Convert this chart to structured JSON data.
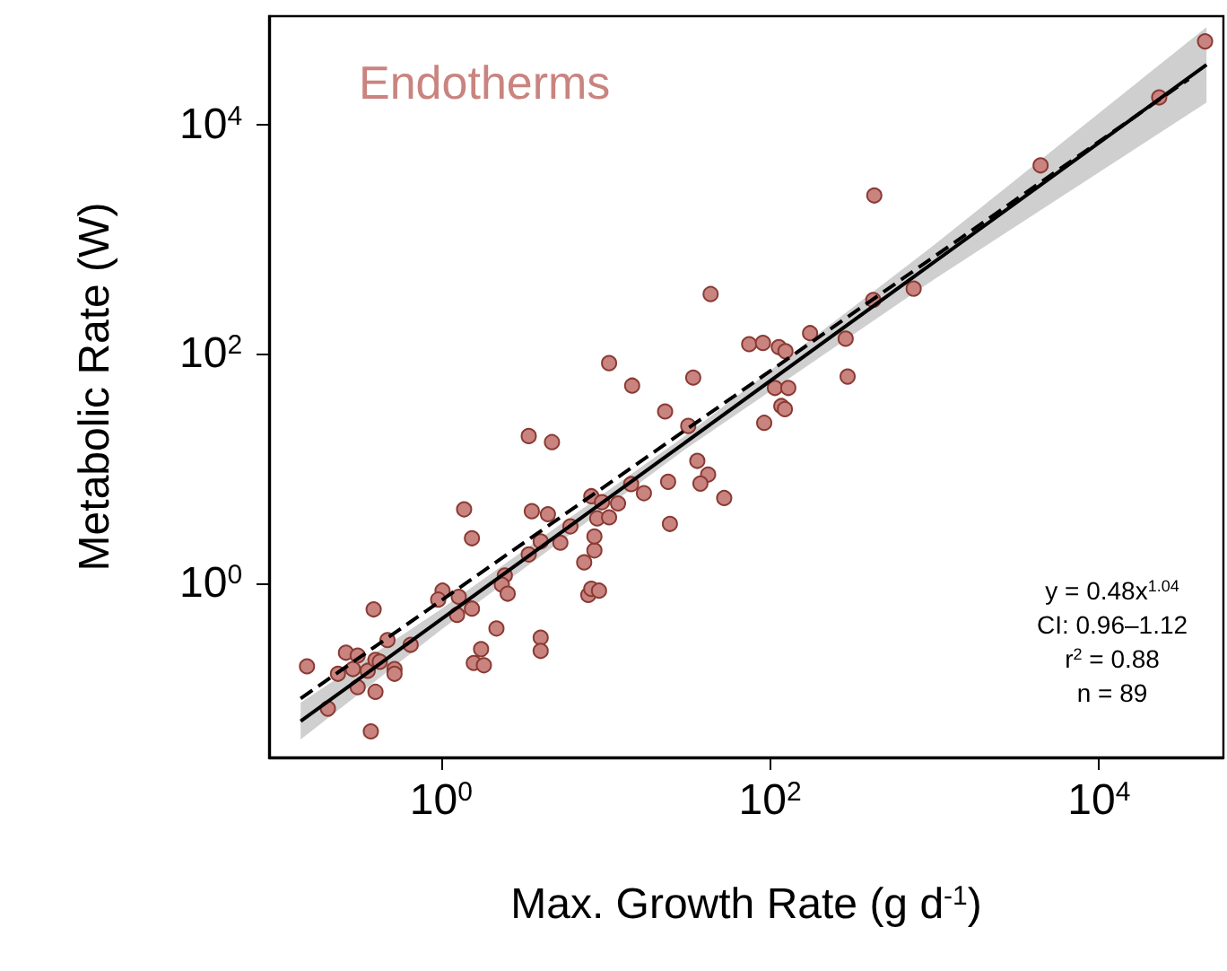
{
  "chart_data": {
    "type": "scatter",
    "title": "Endotherms",
    "xlabel": "Max. Growth Rate (g d$^{-1}$)",
    "ylabel": "Metabolic Rate (W)",
    "log": "xy",
    "xlim": [
      0.09,
      57000
    ],
    "ylim": [
      0.03,
      88000
    ],
    "xticks": [
      {
        "value": 1,
        "label": "10$^{0}$"
      },
      {
        "value": 100,
        "label": "10$^{2}$"
      },
      {
        "value": 10000,
        "label": "10$^{4}$"
      }
    ],
    "yticks": [
      {
        "value": 1,
        "label": "10$^{0}$"
      },
      {
        "value": 100,
        "label": "10$^{2}$"
      },
      {
        "value": 10000,
        "label": "10$^{4}$"
      }
    ],
    "grid": false,
    "marker": "circle",
    "annotations": [
      "y = 0.48x$^{1.04}$",
      "CI: 0.96–1.12",
      "r$^{2}$ = 0.88",
      "n = 89"
    ],
    "series": [
      {
        "type": "scatter",
        "color": "#c98480",
        "x": [
          0.153,
          0.205,
          0.236,
          0.264,
          0.311,
          0.291,
          0.311,
          0.358,
          0.399,
          0.424,
          0.399,
          0.374,
          0.389,
          0.472,
          0.521,
          0.521,
          0.653,
          1.02,
          0.96,
          1.28,
          1.25,
          1.54,
          1.38,
          1.54,
          2.44,
          2.34,
          2.54,
          2.17,
          1.75,
          1.58,
          1.82,
          4.03,
          4.03,
          3.56,
          4.46,
          3.41,
          4.72,
          4.03,
          3.41,
          5.31,
          6.11,
          7.41,
          7.85,
          8.19,
          9.12,
          8.55,
          8.55,
          8.19,
          8.89,
          10.5,
          11.9,
          9.51,
          43.5,
          10.5,
          14.5,
          23.0,
          34.1,
          31.8,
          74.6,
          90.5,
          113,
          124,
          175,
          107,
          129,
          117,
          123,
          92.1,
          36.1,
          42.0,
          37.7,
          52.6,
          24.0,
          24.6,
          17.1,
          14.3,
          44100,
          23200,
          4410,
          430,
          424,
          746,
          288,
          296
        ],
        "values": [
          0.187,
          0.08,
          0.161,
          0.246,
          0.232,
          0.177,
          0.123,
          0.171,
          0.213,
          0.205,
          0.112,
          0.0506,
          0.587,
          0.317,
          0.177,
          0.161,
          0.288,
          0.855,
          0.714,
          0.756,
          0.526,
          0.596,
          4.38,
          2.45,
          1.16,
          0.964,
          0.805,
          0.4,
          0.264,
          0.2,
          0.191,
          0.333,
          0.255,
          4.22,
          3.97,
          19.1,
          16.9,
          2.3,
          1.77,
          2.24,
          3.11,
          1.51,
          0.784,
          0.887,
          0.855,
          1.92,
          2.54,
          5.7,
          3.65,
          3.73,
          4.93,
          5.06,
          331,
          82.6,
          52.6,
          31.3,
          61.8,
          23.4,
          121,
          124,
          114,
          105,
          151,
          50.2,
          50.2,
          34.9,
          32.8,
          24.9,
          11.6,
          8.81,
          7.35,
          5.5,
          7.62,
          3.27,
          6.06,
          7.27,
          53000,
          17200,
          4390,
          2400,
          294,
          369,
          135,
          63.1
        ]
      },
      {
        "type": "line",
        "color": "#000000",
        "line_style": "solid",
        "marker": "none",
        "x": [
          0.14,
          1,
          30,
          1000,
          45000
        ],
        "values": [
          0.062,
          0.48,
          16.5,
          633,
          33100
        ],
        "lower": [
          0.043,
          0.39,
          14.4,
          448,
          15500
        ],
        "upper": [
          0.09,
          0.59,
          18.9,
          894,
          70700
        ]
      },
      {
        "type": "line",
        "color": "#000000",
        "line_style": "dashed",
        "marker": "none",
        "x": [
          0.14,
          35000
        ],
        "values": [
          0.098,
          24800
        ]
      }
    ]
  }
}
